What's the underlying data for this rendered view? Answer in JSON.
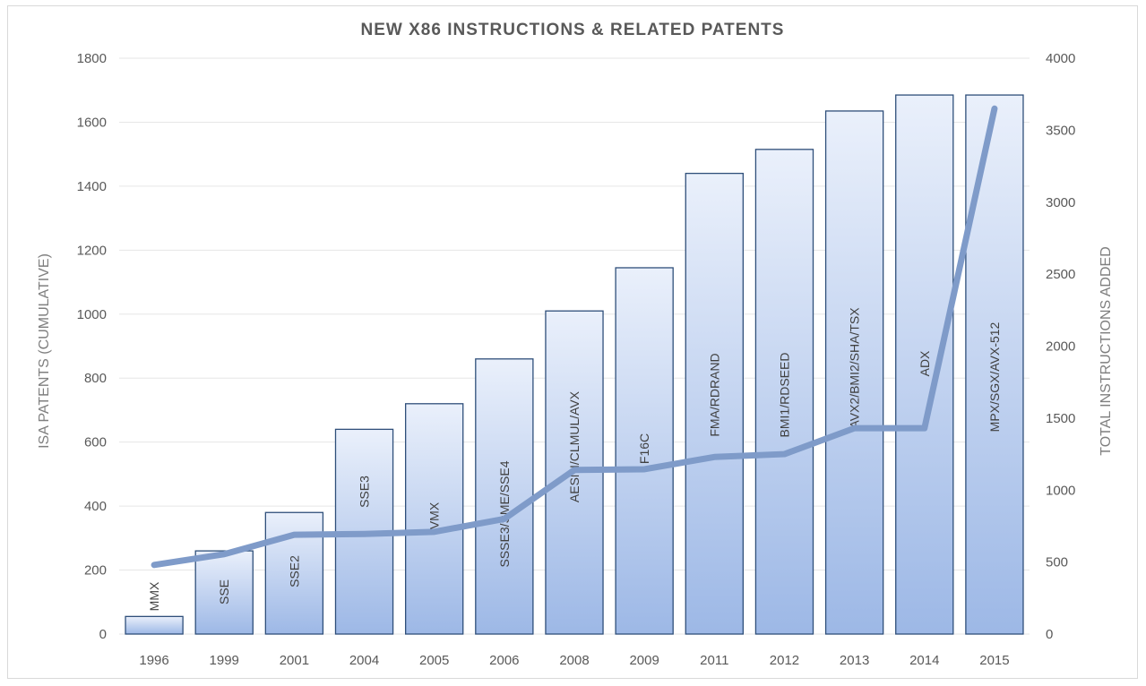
{
  "chart_data": {
    "type": "bar",
    "title": "NEW X86 INSTRUCTIONS & RELATED PATENTS",
    "categories": [
      "1996",
      "1999",
      "2001",
      "2004",
      "2005",
      "2006",
      "2008",
      "2009",
      "2011",
      "2012",
      "2013",
      "2014",
      "2015"
    ],
    "bar_labels": [
      "MMX",
      "SSE",
      "SSE2",
      "SSE3",
      "VMX",
      "SSSE3/SME/SSE4",
      "AESNI/CLMUL/AVX",
      "F16C",
      "FMA/RDRAND",
      "BMI1/RDSEED",
      "AVX2/BMI2/SHA/TSX",
      "ADX",
      "MPX/SGX/AVX-512"
    ],
    "series": [
      {
        "type": "bar",
        "axis": "left",
        "values": [
          55,
          260,
          380,
          640,
          720,
          860,
          1010,
          1145,
          1440,
          1515,
          1635,
          1685,
          1685
        ]
      },
      {
        "type": "line",
        "axis": "right",
        "values": [
          480,
          555,
          690,
          695,
          710,
          800,
          1140,
          1145,
          1230,
          1250,
          1430,
          1430,
          3650
        ]
      }
    ],
    "ylabel": "ISA PATENTS (CUMULATIVE)",
    "y2label": "TOTAL INSTRUCTIONS ADDED",
    "ylim": [
      0,
      1800
    ],
    "y2lim": [
      0,
      4000
    ],
    "yticks": [
      "0",
      "200",
      "400",
      "600",
      "800",
      "1000",
      "1200",
      "1400",
      "1600",
      "1800"
    ],
    "y2ticks": [
      "0",
      "500",
      "1000",
      "1500",
      "2000",
      "2500",
      "3000",
      "3500",
      "4000"
    ],
    "grid": true,
    "colors": {
      "bar_top": "#eaf0fb",
      "bar_bottom": "#9db8e6",
      "bar_border": "#2f4f7a",
      "line": "#7f9bc9"
    }
  }
}
